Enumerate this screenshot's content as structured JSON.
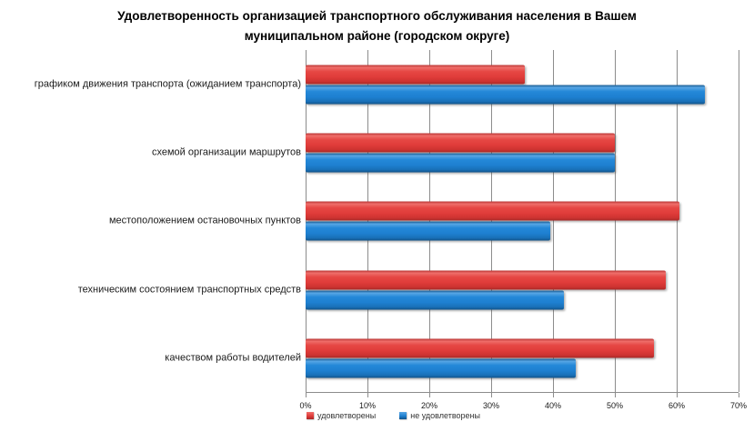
{
  "chart_data": {
    "type": "bar",
    "orientation": "horizontal",
    "title_lines": [
      "Удовлетворенность организацией транспортного обслуживания населения в Вашем",
      "муниципальном районе (городском округе)"
    ],
    "categories": [
      "графиком движения транспорта (ожиданием транспорта)",
      "схемой организации маршрутов",
      "местоположением остановочных пунктов",
      "техническим состоянием транспортных средств",
      "качеством работы водителей"
    ],
    "series": [
      {
        "name": "удовлетворены",
        "color": "#e03c3a",
        "values": [
          35.5,
          50,
          60.4,
          58.3,
          56.3
        ]
      },
      {
        "name": "не удовлетворены",
        "color": "#1e80d1",
        "values": [
          64.5,
          50,
          39.6,
          41.7,
          43.7
        ]
      }
    ],
    "x_ticks": [
      "0%",
      "10%",
      "20%",
      "30%",
      "40%",
      "50%",
      "60%",
      "70%"
    ],
    "xlim": [
      0,
      70
    ],
    "xlabel": "",
    "ylabel": "",
    "grid": "vertical",
    "legend_position": "bottom-left",
    "grid_color": "#8c8c8c",
    "background": "#ffffff"
  }
}
